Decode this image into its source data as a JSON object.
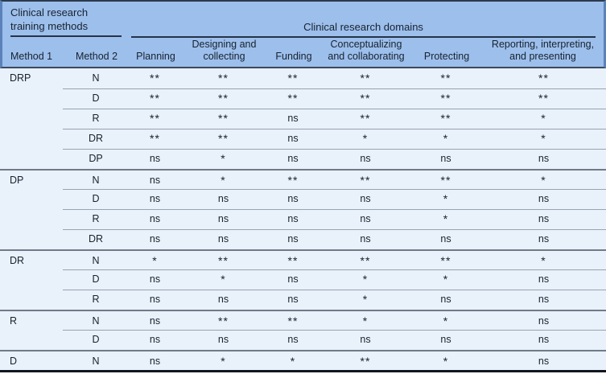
{
  "header": {
    "left_group": "Clinical research training methods",
    "right_group": "Clinical research domains",
    "columns": [
      "Method 1",
      "Method 2",
      "Planning",
      "Designing and collecting",
      "Funding",
      "Conceptualizing and collaborating",
      "Protecting",
      "Reporting, interpreting, and presenting"
    ]
  },
  "rows": [
    {
      "method1": "DRP",
      "method2": "N",
      "section_start": true,
      "values": [
        "**",
        "**",
        "**",
        "**",
        "**",
        "**"
      ]
    },
    {
      "method1": "",
      "method2": "D",
      "section_start": false,
      "values": [
        "**",
        "**",
        "**",
        "**",
        "**",
        "**"
      ]
    },
    {
      "method1": "",
      "method2": "R",
      "section_start": false,
      "values": [
        "**",
        "**",
        "ns",
        "**",
        "**",
        "*"
      ]
    },
    {
      "method1": "",
      "method2": "DR",
      "section_start": false,
      "values": [
        "**",
        "**",
        "ns",
        "*",
        "*",
        "*"
      ]
    },
    {
      "method1": "",
      "method2": "DP",
      "section_start": false,
      "values": [
        "ns",
        "*",
        "ns",
        "ns",
        "ns",
        "ns"
      ]
    },
    {
      "method1": "DP",
      "method2": "N",
      "section_start": true,
      "values": [
        "ns",
        "*",
        "**",
        "**",
        "**",
        "*"
      ]
    },
    {
      "method1": "",
      "method2": "D",
      "section_start": false,
      "values": [
        "ns",
        "ns",
        "ns",
        "ns",
        "*",
        "ns"
      ]
    },
    {
      "method1": "",
      "method2": "R",
      "section_start": false,
      "values": [
        "ns",
        "ns",
        "ns",
        "ns",
        "*",
        "ns"
      ]
    },
    {
      "method1": "",
      "method2": "DR",
      "section_start": false,
      "values": [
        "ns",
        "ns",
        "ns",
        "ns",
        "ns",
        "ns"
      ]
    },
    {
      "method1": "DR",
      "method2": "N",
      "section_start": true,
      "values": [
        "*",
        "**",
        "**",
        "**",
        "**",
        "*"
      ]
    },
    {
      "method1": "",
      "method2": "D",
      "section_start": false,
      "values": [
        "ns",
        "*",
        "ns",
        "*",
        "*",
        "ns"
      ]
    },
    {
      "method1": "",
      "method2": "R",
      "section_start": false,
      "values": [
        "ns",
        "ns",
        "ns",
        "*",
        "ns",
        "ns"
      ]
    },
    {
      "method1": "R",
      "method2": "N",
      "section_start": true,
      "values": [
        "ns",
        "**",
        "**",
        "*",
        "*",
        "ns"
      ]
    },
    {
      "method1": "",
      "method2": "D",
      "section_start": false,
      "values": [
        "ns",
        "ns",
        "ns",
        "ns",
        "ns",
        "ns"
      ]
    },
    {
      "method1": "D",
      "method2": "N",
      "section_start": true,
      "values": [
        "ns",
        "*",
        "*",
        "**",
        "*",
        "ns"
      ]
    }
  ],
  "colors": {
    "header_bg": "#9dbfec",
    "body_bg": "#e9f1fa",
    "header_side_border": "#5b82b8",
    "top_border": "#2c3a4d",
    "section_line": "#6f7b88",
    "row_line": "#98a4b0",
    "bottom_border": "#10161f",
    "text": "#17222f"
  }
}
